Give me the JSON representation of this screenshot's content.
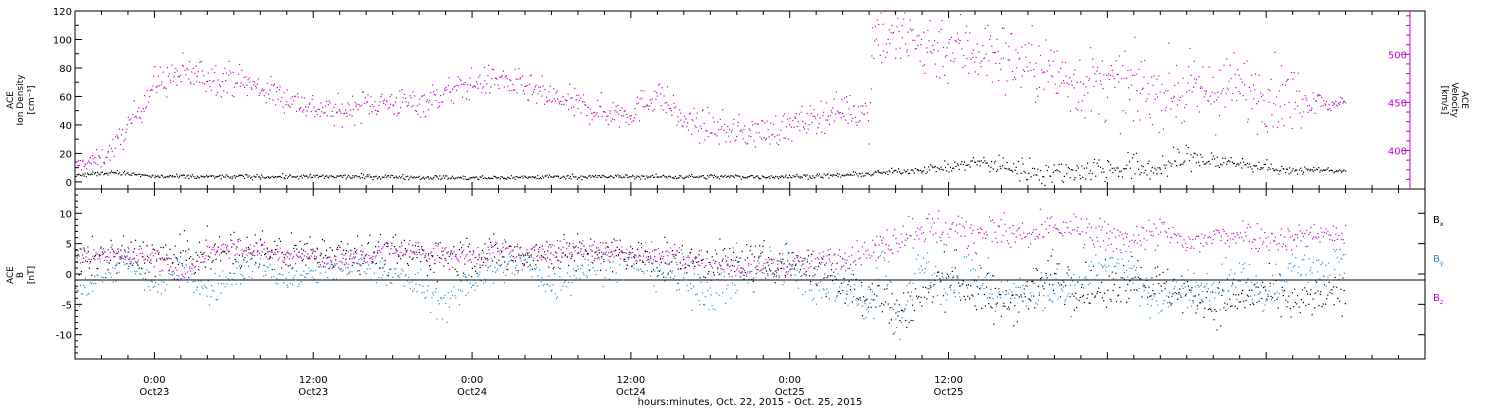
{
  "chart_data": [
    {
      "type": "scatter",
      "panel": "top",
      "ylabel_left": [
        "ACE",
        "Ion Density",
        "[cm⁻³]"
      ],
      "ylabel_right": [
        "ACE",
        "Velocity",
        "[km/s]"
      ],
      "ylim_left": [
        -5,
        120
      ],
      "yticks_left": [
        0,
        20,
        40,
        60,
        80,
        100,
        120
      ],
      "ylim_right": [
        360,
        545
      ],
      "yticks_right": [
        400,
        450,
        500
      ],
      "colors": {
        "density": "#000000",
        "velocity": "#cc00cc"
      },
      "x_hours": [
        -6,
        96
      ],
      "series": [
        {
          "key": "density",
          "axis": "left",
          "knots": [
            [
              -6,
              5
            ],
            [
              -3,
              7
            ],
            [
              0,
              4
            ],
            [
              6,
              4
            ],
            [
              12,
              4
            ],
            [
              18,
              4
            ],
            [
              24,
              3
            ],
            [
              30,
              4
            ],
            [
              34,
              4
            ],
            [
              42,
              4
            ],
            [
              48,
              4
            ],
            [
              52,
              5
            ],
            [
              54,
              6
            ],
            [
              59,
              10
            ],
            [
              60,
              10
            ],
            [
              62,
              14
            ],
            [
              64,
              12
            ],
            [
              66,
              8
            ],
            [
              68,
              7
            ],
            [
              72,
              10
            ],
            [
              76,
              10
            ],
            [
              78,
              18
            ],
            [
              80,
              15
            ],
            [
              84,
              11
            ],
            [
              85,
              8
            ],
            [
              88,
              9
            ],
            [
              90,
              8
            ]
          ],
          "spread": [
            [
              -6,
              1.5
            ],
            [
              54,
              1.5
            ],
            [
              59,
              3
            ],
            [
              66,
              8
            ],
            [
              76,
              10
            ],
            [
              85,
              3
            ],
            [
              90,
              1
            ]
          ]
        },
        {
          "key": "velocity",
          "axis": "right",
          "knots": [
            [
              -6,
              385
            ],
            [
              -4,
              392
            ],
            [
              -3,
              405
            ],
            [
              -2,
              425
            ],
            [
              0,
              470
            ],
            [
              2,
              480
            ],
            [
              6,
              475
            ],
            [
              10,
              455
            ],
            [
              12,
              445
            ],
            [
              14,
              440
            ],
            [
              16,
              450
            ],
            [
              20,
              450
            ],
            [
              24,
              470
            ],
            [
              26,
              475
            ],
            [
              30,
              455
            ],
            [
              34,
              440
            ],
            [
              36,
              440
            ],
            [
              38,
              460
            ],
            [
              40,
              430
            ],
            [
              44,
              420
            ],
            [
              46,
              420
            ],
            [
              48,
              425
            ],
            [
              52,
              445
            ],
            [
              53,
              440
            ],
            [
              54,
              440
            ],
            [
              54.2,
              525
            ],
            [
              58,
              510
            ],
            [
              62,
              505
            ],
            [
              66,
              490
            ],
            [
              70,
              470
            ],
            [
              74,
              465
            ],
            [
              78,
              460
            ],
            [
              82,
              465
            ],
            [
              84,
              460
            ],
            [
              86,
              455
            ],
            [
              88,
              455
            ],
            [
              89,
              445
            ],
            [
              90,
              455
            ]
          ],
          "spread": [
            [
              -6,
              6
            ],
            [
              -2,
              14
            ],
            [
              2,
              18
            ],
            [
              10,
              14
            ],
            [
              53,
              16
            ],
            [
              54.2,
              35
            ],
            [
              86,
              35
            ],
            [
              88,
              8
            ],
            [
              90,
              5
            ]
          ]
        }
      ]
    },
    {
      "type": "scatter",
      "panel": "bottom",
      "ylabel_left": [
        "ACE",
        "B",
        "[nT]"
      ],
      "ylim": [
        -14,
        14
      ],
      "yticks": [
        -10,
        -5,
        0,
        5,
        10
      ],
      "zero_line": true,
      "legend_position": "right",
      "colors": {
        "Bx": "#000000",
        "By": "#1f8fdc",
        "Bz": "#cc00cc"
      },
      "x_hours": [
        -6,
        96
      ],
      "series": [
        {
          "key": "Bx",
          "name": "B",
          "subscript": "x",
          "knots": [
            [
              -6,
              2
            ],
            [
              -3,
              3
            ],
            [
              0,
              3
            ],
            [
              3,
              3
            ],
            [
              6,
              4
            ],
            [
              10,
              3.5
            ],
            [
              14,
              4
            ],
            [
              20,
              3
            ],
            [
              24,
              3
            ],
            [
              30,
              3.5
            ],
            [
              36,
              3
            ],
            [
              40,
              2
            ],
            [
              44,
              2
            ],
            [
              48,
              2
            ],
            [
              50,
              1
            ],
            [
              52,
              -2
            ],
            [
              54,
              -3
            ],
            [
              56,
              -6
            ],
            [
              58,
              -4
            ],
            [
              60,
              0
            ],
            [
              62,
              -3
            ],
            [
              64,
              -5
            ],
            [
              66,
              -3
            ],
            [
              68,
              0
            ],
            [
              70,
              -2
            ],
            [
              72,
              -3
            ],
            [
              74,
              0
            ],
            [
              76,
              -2
            ],
            [
              78,
              -3
            ],
            [
              80,
              -5
            ],
            [
              82,
              -4
            ],
            [
              84,
              -3
            ],
            [
              86,
              -5
            ],
            [
              88,
              -4
            ],
            [
              90,
              -3
            ]
          ],
          "spread": [
            [
              -6,
              3
            ],
            [
              48,
              3
            ],
            [
              50,
              3.5
            ],
            [
              56,
              4
            ],
            [
              90,
              3
            ]
          ]
        },
        {
          "key": "By",
          "name": "B",
          "subscript": "y",
          "knots": [
            [
              -6,
              -3
            ],
            [
              -4,
              0
            ],
            [
              -2,
              2
            ],
            [
              0,
              -2
            ],
            [
              2,
              1
            ],
            [
              4,
              -3
            ],
            [
              6,
              0
            ],
            [
              8,
              2
            ],
            [
              10,
              -1
            ],
            [
              12,
              0
            ],
            [
              14,
              1
            ],
            [
              16,
              2
            ],
            [
              18,
              0
            ],
            [
              20,
              -2
            ],
            [
              22,
              -5
            ],
            [
              24,
              -1
            ],
            [
              26,
              1
            ],
            [
              28,
              2
            ],
            [
              30,
              -2
            ],
            [
              32,
              1
            ],
            [
              34,
              2
            ],
            [
              36,
              2
            ],
            [
              38,
              1
            ],
            [
              40,
              -1
            ],
            [
              42,
              -3
            ],
            [
              44,
              0
            ],
            [
              46,
              1
            ],
            [
              48,
              1
            ],
            [
              50,
              -2
            ],
            [
              52,
              0
            ],
            [
              54,
              -5
            ],
            [
              55,
              4
            ],
            [
              56,
              -8
            ],
            [
              58,
              2
            ],
            [
              60,
              -3
            ],
            [
              62,
              1
            ],
            [
              64,
              -4
            ],
            [
              66,
              -2
            ],
            [
              68,
              -3
            ],
            [
              70,
              -2
            ],
            [
              72,
              3
            ],
            [
              74,
              -1
            ],
            [
              76,
              -5
            ],
            [
              78,
              -2
            ],
            [
              80,
              -3
            ],
            [
              82,
              0
            ],
            [
              84,
              -4
            ],
            [
              86,
              2
            ],
            [
              88,
              0
            ],
            [
              90,
              2
            ]
          ],
          "spread": [
            [
              -6,
              2
            ],
            [
              20,
              2.5
            ],
            [
              54,
              4
            ],
            [
              58,
              3.5
            ],
            [
              90,
              3
            ]
          ]
        },
        {
          "key": "Bz",
          "name": "B",
          "subscript": "z",
          "knots": [
            [
              -6,
              3
            ],
            [
              -3,
              3.5
            ],
            [
              0,
              3
            ],
            [
              2,
              -1
            ],
            [
              4,
              4
            ],
            [
              6,
              5
            ],
            [
              8,
              4
            ],
            [
              10,
              3
            ],
            [
              12,
              3
            ],
            [
              14,
              2
            ],
            [
              16,
              3
            ],
            [
              18,
              4
            ],
            [
              20,
              4
            ],
            [
              22,
              3
            ],
            [
              24,
              3
            ],
            [
              26,
              4
            ],
            [
              28,
              3
            ],
            [
              30,
              4
            ],
            [
              32,
              4
            ],
            [
              34,
              4
            ],
            [
              36,
              3.5
            ],
            [
              38,
              3
            ],
            [
              40,
              3
            ],
            [
              42,
              2
            ],
            [
              44,
              1
            ],
            [
              46,
              1
            ],
            [
              48,
              2
            ],
            [
              50,
              2
            ],
            [
              52,
              3
            ],
            [
              54,
              4
            ],
            [
              56,
              6
            ],
            [
              58,
              8
            ],
            [
              60,
              7
            ],
            [
              62,
              7
            ],
            [
              64,
              7
            ],
            [
              66,
              6
            ],
            [
              68,
              8
            ],
            [
              70,
              7
            ],
            [
              72,
              6
            ],
            [
              74,
              6
            ],
            [
              76,
              7
            ],
            [
              78,
              5
            ],
            [
              80,
              6
            ],
            [
              82,
              7
            ],
            [
              84,
              6
            ],
            [
              86,
              6
            ],
            [
              88,
              7
            ],
            [
              90,
              6
            ]
          ],
          "spread": [
            [
              -6,
              1.5
            ],
            [
              30,
              1.8
            ],
            [
              54,
              2
            ],
            [
              58,
              3
            ],
            [
              90,
              2
            ]
          ]
        }
      ],
      "legend_labels": [
        "x",
        "y",
        "z"
      ]
    }
  ],
  "x_axis": {
    "range_hours": [
      -6,
      96
    ],
    "ticks": [
      {
        "h": 0,
        "time": "0:00",
        "day": "Oct23"
      },
      {
        "h": 12,
        "time": "12:00",
        "day": "Oct23"
      },
      {
        "h": 24,
        "time": "0:00",
        "day": "Oct24"
      },
      {
        "h": 36,
        "time": "12:00",
        "day": "Oct24"
      },
      {
        "h": 48,
        "time": "0:00",
        "day": "Oct25"
      },
      {
        "h": 60,
        "time": "12:00",
        "day": "Oct25"
      }
    ],
    "title": "hours:minutes, Oct. 22, 2015 - Oct. 25, 2015"
  }
}
